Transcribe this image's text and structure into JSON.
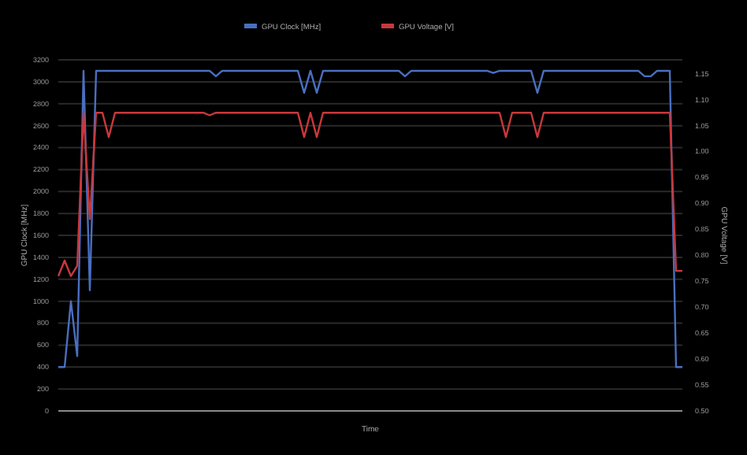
{
  "chart_data": {
    "type": "line",
    "xlabel": "Time",
    "ylabel": "GPU Clock [MHz]",
    "y2label": "GPU Voltage [V]",
    "categories": [
      null,
      null,
      null,
      null,
      null,
      null,
      null,
      null,
      null,
      null,
      null,
      null,
      null,
      null,
      null,
      null,
      null,
      null,
      null,
      null,
      null,
      null,
      null,
      null,
      null,
      null,
      null,
      null,
      null,
      null,
      null,
      null,
      null,
      null,
      null,
      null,
      null,
      null,
      null,
      null,
      null,
      null,
      null,
      null,
      null,
      null,
      null,
      null,
      null,
      null,
      null,
      null,
      null,
      null,
      null,
      null,
      null,
      null,
      null,
      null,
      null,
      null,
      null,
      null,
      null,
      null,
      null,
      null,
      null,
      null,
      null,
      null,
      null,
      null,
      null,
      null,
      null,
      null,
      null,
      null,
      null,
      null,
      null,
      null,
      null,
      null,
      null,
      null,
      null,
      null,
      null,
      null,
      null,
      null,
      null,
      null,
      null,
      null,
      null,
      null
    ],
    "series": [
      {
        "name": "GPU Clock [MHz]",
        "color": "#4a6fc0",
        "values": [
          400,
          400,
          1000,
          500,
          3100,
          1100,
          3100,
          3100,
          3100,
          3100,
          3100,
          3100,
          3100,
          3100,
          3100,
          3100,
          3100,
          3100,
          3100,
          3100,
          3100,
          3100,
          3100,
          3100,
          3100,
          3050,
          3100,
          3100,
          3100,
          3100,
          3100,
          3100,
          3100,
          3100,
          3100,
          3100,
          3100,
          3100,
          3100,
          2900,
          3100,
          2900,
          3100,
          3100,
          3100,
          3100,
          3100,
          3100,
          3100,
          3100,
          3100,
          3100,
          3100,
          3100,
          3100,
          3050,
          3100,
          3100,
          3100,
          3100,
          3100,
          3100,
          3100,
          3100,
          3100,
          3100,
          3100,
          3100,
          3100,
          3080,
          3100,
          3100,
          3100,
          3100,
          3100,
          3100,
          2900,
          3100,
          3100,
          3100,
          3100,
          3100,
          3100,
          3100,
          3100,
          3100,
          3100,
          3100,
          3100,
          3100,
          3100,
          3100,
          3100,
          3050,
          3050,
          3100,
          3100,
          3100,
          400,
          400
        ]
      },
      {
        "name": "GPU Voltage [V]",
        "color": "#c8383c",
        "axis": "y2",
        "values": [
          0.76,
          0.79,
          0.76,
          0.78,
          1.075,
          0.87,
          1.075,
          1.075,
          1.028,
          1.075,
          1.075,
          1.075,
          1.075,
          1.075,
          1.075,
          1.075,
          1.075,
          1.075,
          1.075,
          1.075,
          1.075,
          1.075,
          1.075,
          1.075,
          1.07,
          1.075,
          1.075,
          1.075,
          1.075,
          1.075,
          1.075,
          1.075,
          1.075,
          1.075,
          1.075,
          1.075,
          1.075,
          1.075,
          1.075,
          1.028,
          1.075,
          1.028,
          1.075,
          1.075,
          1.075,
          1.075,
          1.075,
          1.075,
          1.075,
          1.075,
          1.075,
          1.075,
          1.075,
          1.075,
          1.075,
          1.075,
          1.075,
          1.075,
          1.075,
          1.075,
          1.075,
          1.075,
          1.075,
          1.075,
          1.075,
          1.075,
          1.075,
          1.075,
          1.075,
          1.075,
          1.075,
          1.028,
          1.075,
          1.075,
          1.075,
          1.075,
          1.028,
          1.075,
          1.075,
          1.075,
          1.075,
          1.075,
          1.075,
          1.075,
          1.075,
          1.075,
          1.075,
          1.075,
          1.075,
          1.075,
          1.075,
          1.075,
          1.075,
          1.075,
          1.075,
          1.075,
          1.075,
          1.075,
          0.77,
          0.77
        ]
      }
    ],
    "ylim": [
      0,
      3200
    ],
    "yticks": [
      0,
      200,
      400,
      600,
      800,
      1000,
      1200,
      1400,
      1600,
      1800,
      2000,
      2200,
      2400,
      2600,
      2800,
      3000,
      3200
    ],
    "y2lim": [
      0.5,
      1.177
    ],
    "y2ticks": [
      {
        "value": 0.5,
        "label": "0.50"
      },
      {
        "value": 0.55,
        "label": "0.55"
      },
      {
        "value": 0.6,
        "label": "0.60"
      },
      {
        "value": 0.65,
        "label": "0.65"
      },
      {
        "value": 0.7,
        "label": "0.70"
      },
      {
        "value": 0.75,
        "label": "0.75"
      },
      {
        "value": 0.8,
        "label": "0.80"
      },
      {
        "value": 0.85,
        "label": "0.85"
      },
      {
        "value": 0.9,
        "label": "0.90"
      },
      {
        "value": 0.95,
        "label": "0.95"
      },
      {
        "value": 1.0,
        "label": "1.00"
      },
      {
        "value": 1.05,
        "label": "1.05"
      },
      {
        "value": 1.1,
        "label": "1.10"
      },
      {
        "value": 1.15,
        "label": "1.15"
      }
    ],
    "grid": "y",
    "legend": "top",
    "marker": "none",
    "line_style": "solid"
  }
}
